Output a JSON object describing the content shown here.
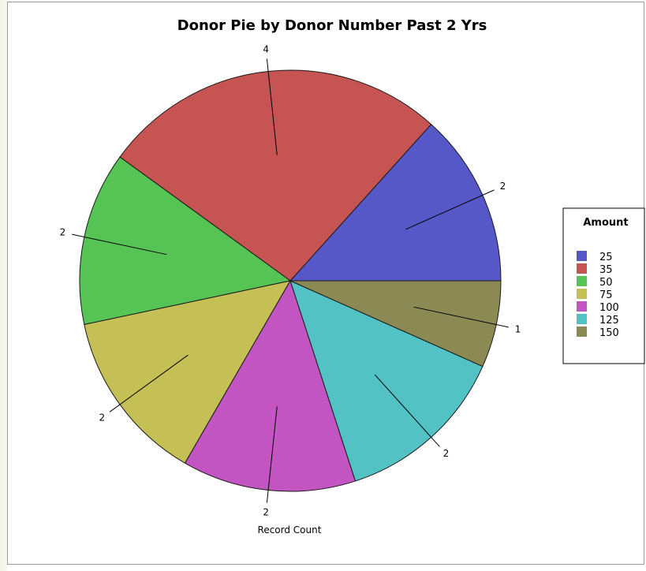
{
  "chart_data": {
    "type": "pie",
    "title": "Donor Pie by Donor Number Past 2 Yrs",
    "caption": "Record Count",
    "legend_title": "Amount",
    "legend_placement": "right",
    "start_angle_deg": 0,
    "direction": "counterclockwise",
    "categories": [
      "25",
      "35",
      "50",
      "75",
      "100",
      "125",
      "150"
    ],
    "values": [
      2,
      4,
      2,
      2,
      2,
      2,
      1
    ],
    "colors": [
      "#5558c6",
      "#c55453",
      "#56c455",
      "#c4c055",
      "#c255c2",
      "#53c2c4",
      "#8b8a55"
    ]
  }
}
